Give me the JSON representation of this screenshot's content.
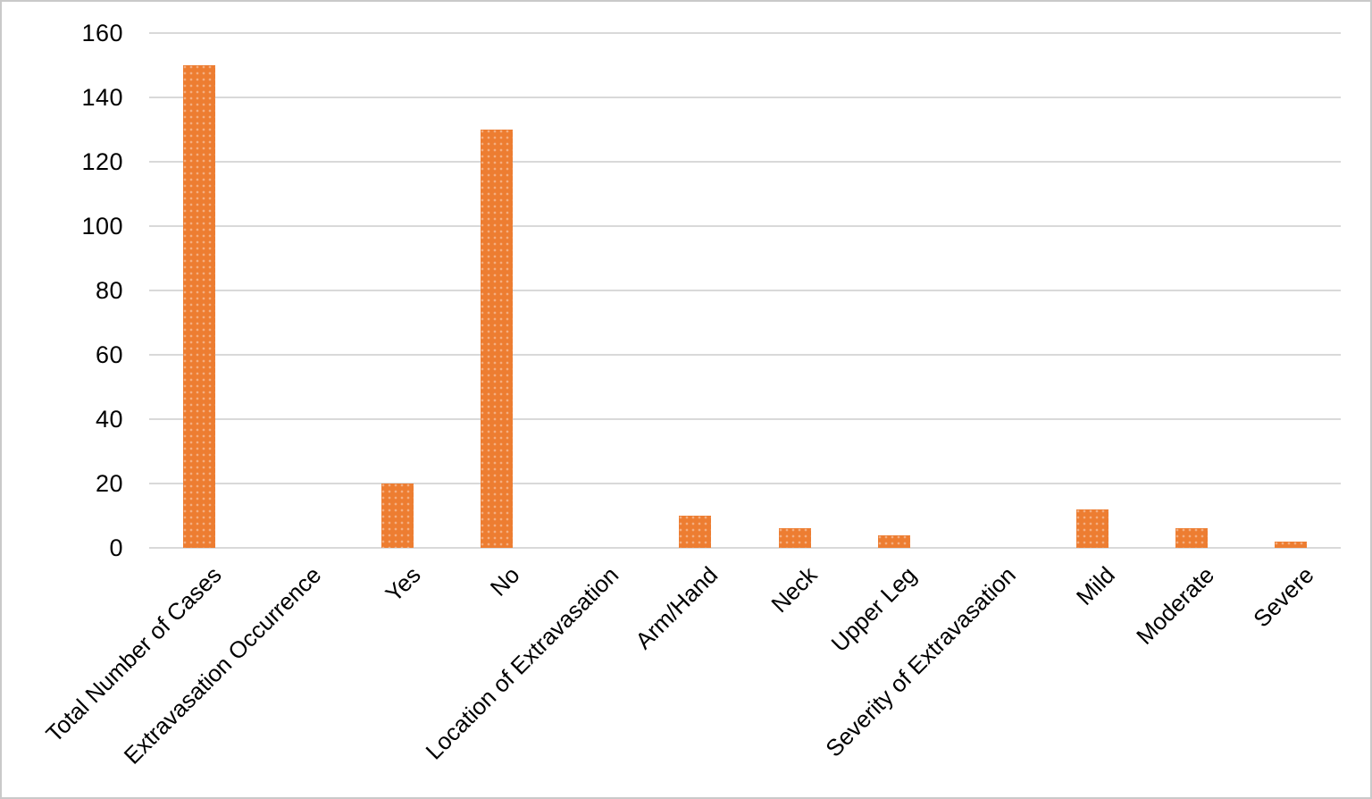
{
  "chart_data": {
    "type": "bar",
    "title": "",
    "xlabel": "",
    "ylabel": "",
    "categories": [
      "Total Number of Cases",
      "Extravasation Occurrence",
      "Yes",
      "No",
      "Location of Extravasation",
      "Arm/Hand",
      "Neck",
      "Upper Leg",
      "Severity of Extravasation",
      "Mild",
      "Moderate",
      "Severe"
    ],
    "values": [
      150,
      0,
      20,
      130,
      0,
      10,
      6,
      4,
      0,
      12,
      6,
      2
    ],
    "ylim": [
      0,
      160
    ],
    "yticks": [
      0,
      20,
      40,
      60,
      80,
      100,
      120,
      140,
      160
    ],
    "grid": true,
    "legend_position": "none",
    "bar_color": "#ed7d31",
    "gridline_color": "#d9d9d9",
    "axis_text_color": "#000000"
  }
}
